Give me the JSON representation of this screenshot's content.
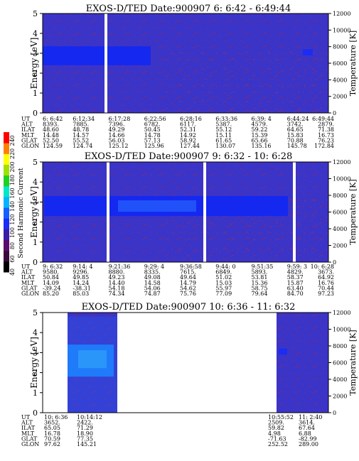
{
  "colorbar": {
    "label": "Second Harmonic Current",
    "ticks": [
      "40",
      "60",
      "80",
      "100",
      "120",
      "140",
      "160",
      "180",
      "200",
      "220",
      "240"
    ],
    "colors": [
      "#000000",
      "#3a0a3a",
      "#5a0c6e",
      "#3a1aa8",
      "#1a2cf5",
      "#1560ff",
      "#00b4ff",
      "#00e6c8",
      "#20d020",
      "#a0e000",
      "#ffff00",
      "#ff8000",
      "#ff0000"
    ]
  },
  "chart_data": [
    {
      "type": "heatmap",
      "title": "EXOS-D/TED   Date:900907  6: 6:42 - 6:49:44",
      "ylabel": "Energy [eV]",
      "y2label": "Temperature [K]",
      "yticks": [
        "0",
        "1",
        "2",
        "3",
        "4",
        "5"
      ],
      "y2ticks": [
        "0",
        "2000",
        "4000",
        "6000",
        "8000",
        "10000",
        "12000"
      ],
      "ylim": [
        0,
        5
      ],
      "y2lim": [
        0,
        12000
      ],
      "rows": [
        {
          "name": "UT",
          "values": [
            "6: 6:42",
            "6:12:34",
            "6:17:28",
            "6:22:56",
            "6:28:16",
            "6:33:36",
            "6:39: 4",
            "6:44:24",
            "6:49:44"
          ]
        },
        {
          "name": "ALT",
          "values": [
            "8393.",
            "7885.",
            "7396.",
            "6782.",
            "6117.",
            "5387.",
            "4579.",
            "3742.",
            "2879."
          ]
        },
        {
          "name": "ILAT",
          "values": [
            "48.60",
            "48.78",
            "49.29",
            "50.45",
            "52.31",
            "55.12",
            "59.22",
            "64.65",
            "71.38"
          ]
        },
        {
          "name": "MLT",
          "values": [
            "14.48",
            "14.57",
            "14.66",
            "14.78",
            "14.92",
            "15.11",
            "15.39",
            "15.83",
            "16.73"
          ]
        },
        {
          "name": "GLAT",
          "values": [
            "52.50",
            "55.52",
            "56.03",
            "57.13",
            "58.92",
            "61.65",
            "65.66",
            "70.88",
            "76.23"
          ]
        },
        {
          "name": "GLON",
          "values": [
            "124.59",
            "124.74",
            "125.12",
            "125.96",
            "127.44",
            "130.07",
            "135.16",
            "145.78",
            "172.84"
          ]
        }
      ],
      "data_gaps": [
        "6:16:40 - 6:17:28"
      ],
      "enhanced_band": {
        "energy_range_eV": [
          2.4,
          3.35
        ],
        "ut_range": "6: 6:42 - 6:21:20"
      }
    },
    {
      "type": "heatmap",
      "title": "EXOS-D/TED   Date:900907  9: 6:32 - 10: 6:28",
      "ylabel": "Energy [eV]",
      "y2label": "Temperature [K]",
      "yticks": [
        "0",
        "1",
        "2",
        "3",
        "4",
        "5"
      ],
      "y2ticks": [
        "0",
        "2000",
        "4000",
        "6000",
        "8000",
        "10000",
        "12000"
      ],
      "ylim": [
        0,
        5
      ],
      "y2lim": [
        0,
        12000
      ],
      "rows": [
        {
          "name": "UT",
          "values": [
            "9: 6:32",
            "9:14: 4",
            "9:21:36",
            "9:29: 4",
            "9:36:58",
            "9:44: 0",
            "9:51:35",
            "9:59: 3",
            "10: 6:28"
          ]
        },
        {
          "name": "ALT",
          "values": [
            "9580.",
            "9296.",
            "8880.",
            "8335.",
            "7615.",
            "6849.",
            "5893.",
            "4829.",
            "3673."
          ]
        },
        {
          "name": "ILAT",
          "values": [
            "50.84",
            "49.85",
            "49.23",
            "49.08",
            "49.64",
            "51.02",
            "53.81",
            "58.37",
            "64.92"
          ]
        },
        {
          "name": "MLT",
          "values": [
            "14.09",
            "14.24",
            "14.40",
            "14.58",
            "14.79",
            "15.03",
            "15.36",
            "15.87",
            "16.76"
          ]
        },
        {
          "name": "GLAT",
          "values": [
            "-39.24",
            "-38.31",
            "54.18",
            "54.06",
            "54.62",
            "55.97",
            "58.75",
            "63.40",
            "70.44"
          ]
        },
        {
          "name": "GLON",
          "values": [
            "85.20",
            "85.03",
            "74.34",
            "74.87",
            "75.76",
            "77.09",
            "79.64",
            "84.70",
            "97.23"
          ]
        }
      ],
      "data_gaps": [
        "9:20:50 - 9:21:36",
        "9:43:40 - 9:44:10",
        "9:58:20 - 9:59: 3"
      ],
      "enhanced_band": {
        "energy_range_eV": [
          2.3,
          3.3
        ],
        "ut_range": "9: 8:00 - 9:58:20"
      }
    },
    {
      "type": "heatmap",
      "title": "EXOS-D/TED   Date:900907  10: 6:36 - 11: 6:32",
      "ylabel": "Energy [eV]",
      "y2label": "Temperature [K]",
      "yticks": [
        "0",
        "1",
        "2",
        "3",
        "4",
        "5"
      ],
      "y2ticks": [
        "0",
        "2000",
        "4000",
        "6000",
        "8000",
        "10000",
        "12000"
      ],
      "ylim": [
        0,
        5
      ],
      "y2lim": [
        0,
        12000
      ],
      "rows": [
        {
          "name": "UT",
          "values": [
            "10: 6:36",
            "10:14:12",
            "10:55:52",
            "11: 2:40"
          ]
        },
        {
          "name": "ALT",
          "values": [
            "3652.",
            "2422.",
            "2509.",
            "3614."
          ]
        },
        {
          "name": "ILAT",
          "values": [
            "65.05",
            "71.29",
            "59.82",
            "67.64"
          ]
        },
        {
          "name": "MLT",
          "values": [
            "16.78",
            "18.90",
            "4.98",
            "6.88"
          ]
        },
        {
          "name": "GLAT",
          "values": [
            "70.59",
            "77.35",
            "-71.63",
            "-82.99"
          ]
        },
        {
          "name": "GLON",
          "values": [
            "97.62",
            "145.21",
            "252.52",
            "289.00"
          ]
        }
      ],
      "data_gaps": [
        "10:17:40 - 10:55:00"
      ],
      "enhanced_band": {
        "energy_range_eV": [
          1.8,
          3.4
        ],
        "ut_range": "10: 9:30 - 10:15:50"
      }
    }
  ]
}
